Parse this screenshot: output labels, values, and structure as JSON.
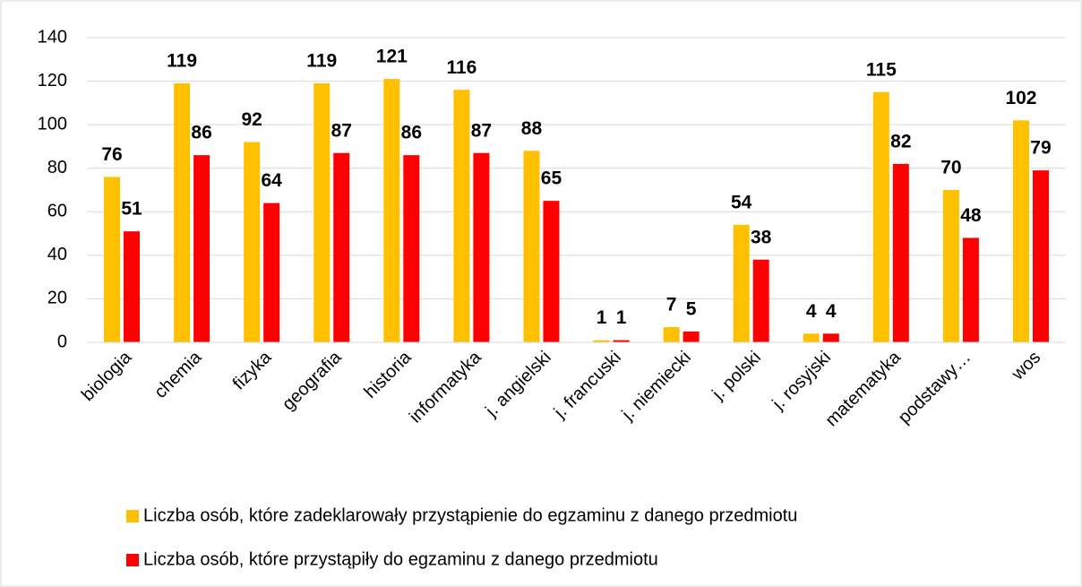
{
  "chart_data": {
    "type": "bar",
    "categories": [
      "biologia",
      "chemia",
      "fizyka",
      "geografia",
      "historia",
      "informatyka",
      "j. angielski",
      "j. francuski",
      "j. niemiecki",
      "j. polski",
      "j. rosyjski",
      "matematyka",
      "podstawy…",
      "wos"
    ],
    "series": [
      {
        "name": "Liczba osób, które zadeklarowały przystąpienie do egzaminu z danego przedmiotu",
        "color": "#FFC000",
        "values": [
          76,
          119,
          92,
          119,
          121,
          116,
          88,
          1,
          7,
          54,
          4,
          115,
          70,
          102
        ]
      },
      {
        "name": "Liczba osób, które przystąpiły do egzaminu z danego przedmiotu",
        "color": "#FF0000",
        "values": [
          51,
          86,
          64,
          87,
          86,
          87,
          65,
          1,
          5,
          38,
          4,
          82,
          48,
          79
        ]
      }
    ],
    "ylim": [
      0,
      140
    ],
    "yticks": [
      0,
      20,
      40,
      60,
      80,
      100,
      120,
      140
    ],
    "grid": true,
    "legend": "bottom"
  }
}
